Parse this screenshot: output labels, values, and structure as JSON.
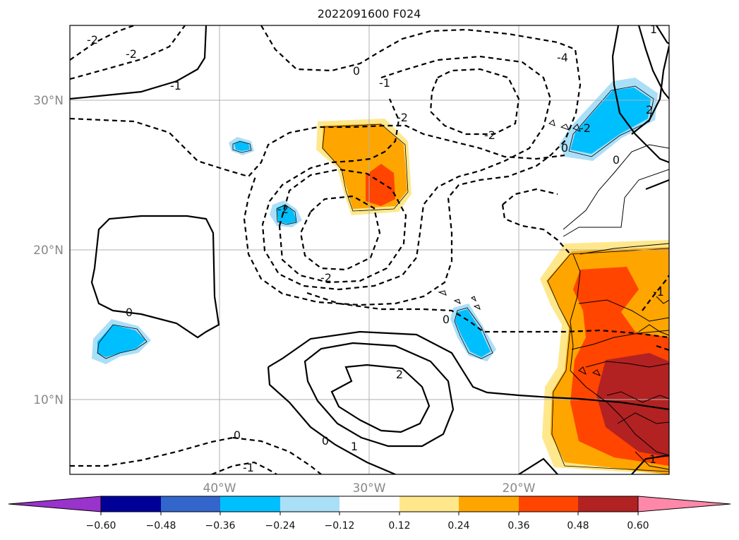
{
  "title": "2022091600 F024",
  "axes": {
    "x_ticks": [
      "40°W",
      "30°W",
      "20°W"
    ],
    "y_ticks": [
      "30°N",
      "20°N",
      "10°N"
    ],
    "lon_range": [
      -50,
      -10
    ],
    "lat_range": [
      5,
      35
    ]
  },
  "contour_labels": [
    {
      "id": "c1",
      "text": "-2"
    },
    {
      "id": "c2",
      "text": "-2"
    },
    {
      "id": "c3",
      "text": "-1"
    },
    {
      "id": "c4",
      "text": "0"
    },
    {
      "id": "c5",
      "text": "-1"
    },
    {
      "id": "c6",
      "text": "-2"
    },
    {
      "id": "c7",
      "text": "-2"
    },
    {
      "id": "c8",
      "text": "-4"
    },
    {
      "id": "c9",
      "text": "-2"
    },
    {
      "id": "c10",
      "text": "-2"
    },
    {
      "id": "c11",
      "text": "0"
    },
    {
      "id": "c12",
      "text": "-2"
    },
    {
      "id": "c13",
      "text": "0"
    },
    {
      "id": "c14",
      "text": "2"
    },
    {
      "id": "c15",
      "text": "0"
    },
    {
      "id": "c16",
      "text": "1"
    },
    {
      "id": "c17",
      "text": "0"
    },
    {
      "id": "c18",
      "text": "-1"
    },
    {
      "id": "c19",
      "text": "0"
    },
    {
      "id": "c20",
      "text": "0"
    },
    {
      "id": "c21",
      "text": "-1"
    },
    {
      "id": "c22",
      "text": "2"
    },
    {
      "id": "c23",
      "text": "1"
    },
    {
      "id": "c24",
      "text": "1"
    }
  ],
  "colorbar": {
    "ticks": [
      "−0.60",
      "−0.48",
      "−0.36",
      "−0.24",
      "−0.12",
      "0.12",
      "0.24",
      "0.36",
      "0.48",
      "0.60"
    ],
    "colors": {
      "under": "#9933cc",
      "neg_060_048": "#000099",
      "neg_048_036": "#3366cc",
      "neg_036_024": "#00bfff",
      "neg_024_012": "#aadff8",
      "neutral": "#ffffff",
      "pos_012_024": "#ffe88c",
      "pos_024_036": "#ffa500",
      "pos_036_048": "#ff4500",
      "pos_048_060": "#b22222",
      "over": "#ff88aa"
    }
  }
}
